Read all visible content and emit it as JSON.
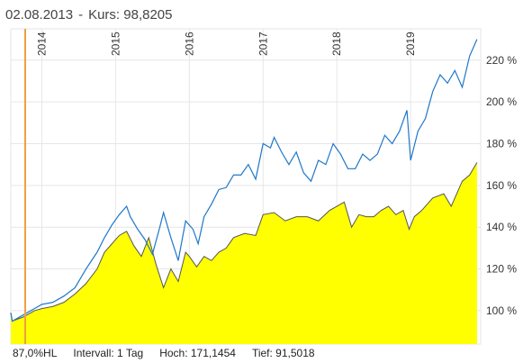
{
  "header": {
    "date": "02.08.2013",
    "separator": "-",
    "price_text": "Kurs: 98,8205"
  },
  "footer": {
    "hl": "87,0%HL",
    "interval": "Intervall: 1 Tag",
    "high": "Hoch: 171,1454",
    "low": "Tief: 91,5018"
  },
  "colors": {
    "line": "#1f77c9",
    "area_fill": "#ffff00",
    "area_line": "#555555",
    "cursor": "#f0a040",
    "grid": "#e6e6e6"
  },
  "chart_data": {
    "type": "line",
    "title": "",
    "xlabel": "",
    "ylabel": "",
    "x_tick_labels": [
      "2014",
      "2015",
      "2016",
      "2017",
      "2018",
      "2019"
    ],
    "x_tick_years": [
      2014,
      2015,
      2016,
      2017,
      2018,
      2019
    ],
    "y_tick_values": [
      100,
      120,
      140,
      160,
      180,
      200,
      220
    ],
    "y_tick_labels": [
      "100 %",
      "120 %",
      "140 %",
      "160 %",
      "180 %",
      "200 %",
      "220 %"
    ],
    "xlim": [
      2013.58,
      2019.95
    ],
    "ylim": [
      84,
      235
    ],
    "cursor_x": 2013.58,
    "series": [
      {
        "style": "line",
        "x": [
          2013.45,
          2013.6,
          2013.75,
          2013.9,
          2014.0,
          2014.15,
          2014.3,
          2014.45,
          2014.6,
          2014.75,
          2014.85,
          2014.95,
          2015.05,
          2015.15,
          2015.2,
          2015.3,
          2015.4,
          2015.5,
          2015.6,
          2015.65,
          2015.75,
          2015.85,
          2015.95,
          2016.05,
          2016.12,
          2016.2,
          2016.3,
          2016.4,
          2016.5,
          2016.6,
          2016.7,
          2016.8,
          2016.9,
          2017.0,
          2017.1,
          2017.15,
          2017.25,
          2017.35,
          2017.45,
          2017.55,
          2017.65,
          2017.75,
          2017.85,
          2017.95,
          2018.05,
          2018.15,
          2018.25,
          2018.35,
          2018.45,
          2018.55,
          2018.65,
          2018.75,
          2018.85,
          2018.95,
          2019.0,
          2019.1,
          2019.2,
          2019.3,
          2019.4,
          2019.5,
          2019.6,
          2019.7,
          2019.8,
          2019.9
        ],
        "y": [
          99,
          95,
          98,
          101,
          103,
          104,
          107,
          111,
          120,
          128,
          135,
          141,
          146,
          150,
          145,
          139,
          134,
          127,
          140,
          147,
          135,
          124,
          143,
          139,
          132,
          145,
          151,
          158,
          159,
          165,
          165,
          170,
          163,
          180,
          178,
          183,
          176,
          170,
          176,
          166,
          162,
          172,
          170,
          180,
          175,
          168,
          168,
          175,
          172,
          175,
          184,
          180,
          186,
          196,
          172,
          186,
          192,
          205,
          213,
          209,
          215,
          207,
          222,
          230
        ]
      },
      {
        "style": "area",
        "x": [
          2013.45,
          2013.6,
          2013.75,
          2013.9,
          2014.0,
          2014.15,
          2014.3,
          2014.45,
          2014.6,
          2014.75,
          2014.85,
          2014.95,
          2015.05,
          2015.15,
          2015.25,
          2015.35,
          2015.45,
          2015.55,
          2015.65,
          2015.75,
          2015.85,
          2015.95,
          2016.0,
          2016.1,
          2016.2,
          2016.3,
          2016.4,
          2016.5,
          2016.6,
          2016.75,
          2016.9,
          2017.0,
          2017.15,
          2017.3,
          2017.45,
          2017.6,
          2017.75,
          2017.9,
          2018.0,
          2018.1,
          2018.2,
          2018.3,
          2018.4,
          2018.5,
          2018.6,
          2018.7,
          2018.8,
          2018.9,
          2018.98,
          2019.05,
          2019.15,
          2019.3,
          2019.45,
          2019.55,
          2019.7,
          2019.8,
          2019.9
        ],
        "y": [
          99,
          95,
          97,
          100,
          101,
          102,
          104,
          108,
          113,
          120,
          128,
          132,
          136,
          138,
          131,
          126,
          135,
          122,
          111,
          120,
          114,
          128,
          126,
          121,
          126,
          124,
          128,
          130,
          135,
          137,
          136,
          146,
          147,
          143,
          145,
          145,
          143,
          148,
          150,
          152,
          140,
          146,
          145,
          145,
          148,
          150,
          146,
          148,
          139,
          145,
          148,
          154,
          156,
          150,
          162,
          165,
          171
        ]
      }
    ]
  }
}
